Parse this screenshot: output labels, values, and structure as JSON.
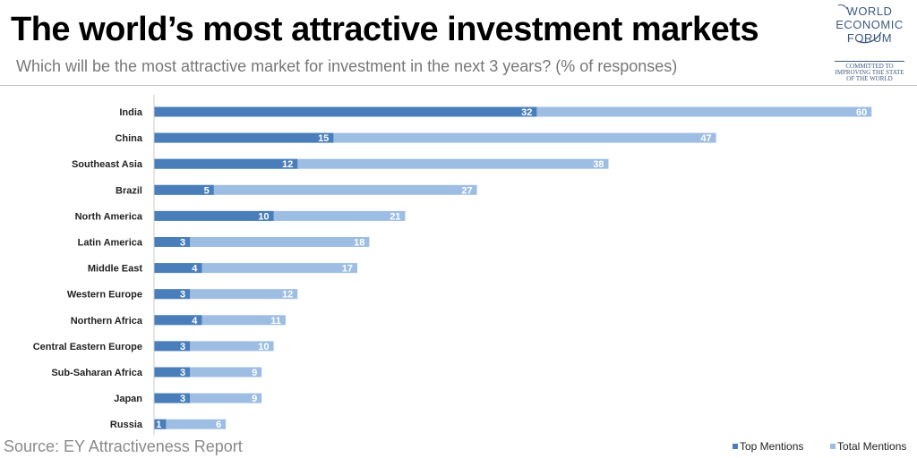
{
  "header": {
    "title": "The world’s most attractive investment markets",
    "subtitle": "Which will be the most attractive market for investment in the next 3 years? (% of responses)"
  },
  "logo": {
    "line1": "WORLD",
    "line2": "ECONOMIC",
    "line3": "FORUM",
    "tagline1": "COMMITTED TO",
    "tagline2": "IMPROVING THE STATE",
    "tagline3": "OF THE WORLD"
  },
  "footer": {
    "source": "Source: EY Attractiveness Report"
  },
  "colors": {
    "top_mentions": "#4a7ebb",
    "total_mentions": "#9dbde3",
    "label_text": "#ffffff",
    "axis_line": "#c8c8c8"
  },
  "chart_data": {
    "type": "bar",
    "orientation": "horizontal",
    "title": "The world’s most attractive investment markets",
    "subtitle": "Which will be the most attractive market for investment in the next 3 years? (% of responses)",
    "categories": [
      "India",
      "China",
      "Southeast Asia",
      "Brazil",
      "North America",
      "Latin America",
      "Middle East",
      "Western Europe",
      "Northern Africa",
      "Central Eastern Europe",
      "Sub-Saharan Africa",
      "Japan",
      "Russia"
    ],
    "series": [
      {
        "name": "Top Mentions",
        "values": [
          32,
          15,
          12,
          5,
          10,
          3,
          4,
          3,
          4,
          3,
          3,
          3,
          1
        ]
      },
      {
        "name": "Total Mentions",
        "values": [
          60,
          47,
          38,
          27,
          21,
          18,
          17,
          12,
          11,
          10,
          9,
          9,
          6
        ]
      }
    ],
    "overlap": true,
    "data_labels": true,
    "xlim": [
      0,
      62
    ],
    "grid": false,
    "legend_position": "bottom-right"
  }
}
